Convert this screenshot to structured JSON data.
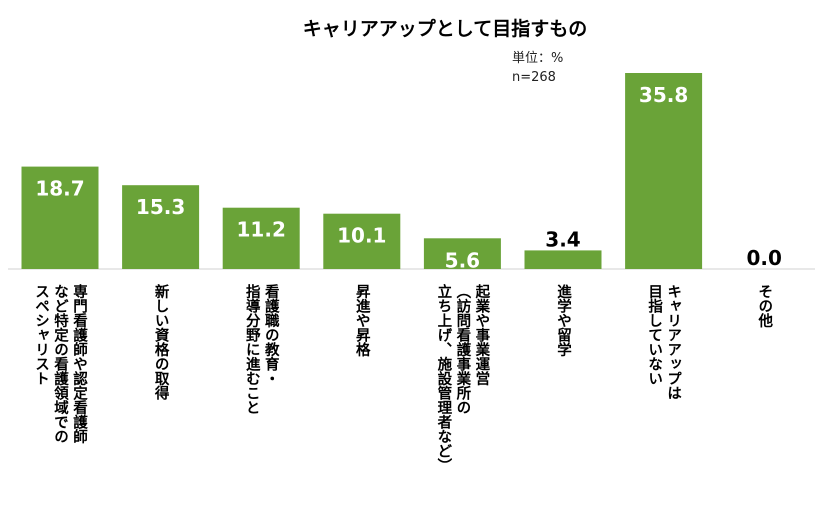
{
  "chart_data": {
    "type": "bar",
    "title": "キャリアアップとして目指すもの",
    "unit_note": "単位：%",
    "n_note": "n=268",
    "categories": [
      [
        "専門看護師や認定看護師",
        "など特定の看護領域での",
        "スペシャリスト"
      ],
      [
        "新しい資格の取得"
      ],
      [
        "看護職の教育・",
        "指導分野に進むこと"
      ],
      [
        "昇進や昇格"
      ],
      [
        "起業や事業運営",
        "（訪問看護事業所の",
        "立ち上げ、施設管理者など）"
      ],
      [
        "進学や留学"
      ],
      [
        "キャリアアップは",
        "目指していない"
      ],
      [
        "その他"
      ]
    ],
    "values": [
      18.7,
      15.3,
      11.2,
      10.1,
      5.6,
      3.4,
      35.8,
      0.0
    ],
    "value_labels": [
      "18.7",
      "15.3",
      "11.2",
      "10.1",
      "5.6",
      "3.4",
      "35.8",
      "0.0"
    ],
    "ylim": [
      0,
      36
    ],
    "grid": false,
    "bar_color": "#6aa338"
  }
}
